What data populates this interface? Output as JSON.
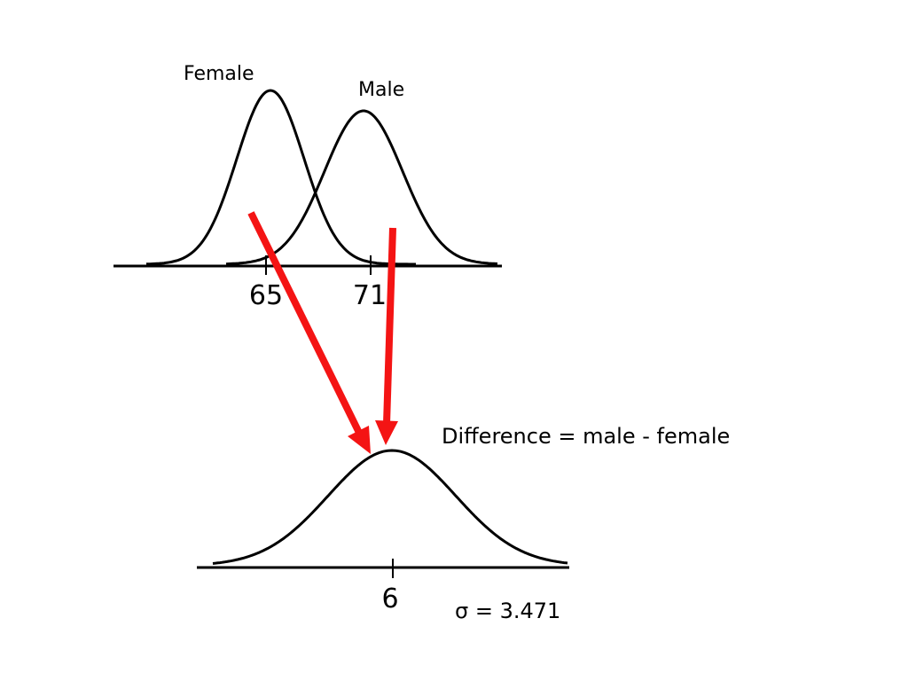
{
  "top_plot": {
    "curve_labels": [
      "Female",
      "Male"
    ],
    "tick_labels": [
      "65",
      "71"
    ]
  },
  "bottom_plot": {
    "title": "Difference = male - female",
    "tick_label": "6",
    "sigma_note": "σ = 3.471"
  }
}
